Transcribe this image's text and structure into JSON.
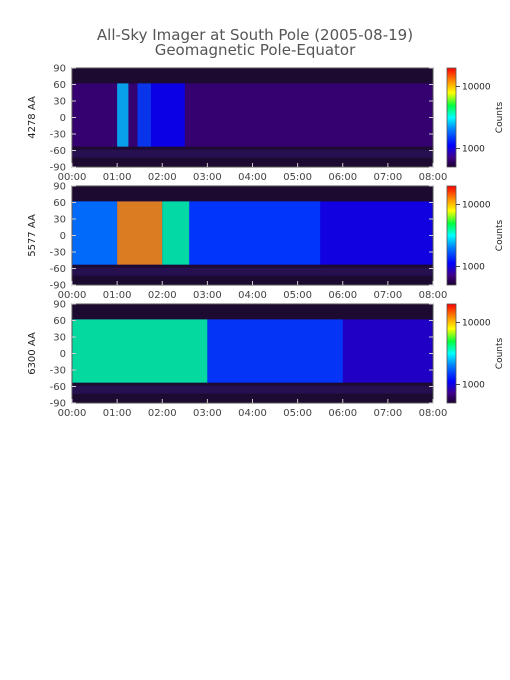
{
  "figure": {
    "title_line1": "All-Sky Imager at South Pole (2005-08-19)",
    "title_line2": "Geomagnetic Pole-Equator"
  },
  "colors": {
    "background_dark": "#1c0a30",
    "fill_violet": "#3a1c8c",
    "axis": "#555555"
  },
  "chart_data": [
    {
      "type": "heatmap",
      "ylabel": "4278 AA",
      "x_tick_labels": [
        "00:00",
        "01:00",
        "02:00",
        "03:00",
        "04:00",
        "05:00",
        "06:00",
        "07:00",
        "08:00"
      ],
      "y_tick_labels": [
        "90",
        "60",
        "30",
        "0",
        "-30",
        "-60",
        "-90"
      ],
      "xlim_hours": [
        0,
        8
      ],
      "ylim": [
        -90,
        90
      ],
      "colorbar": {
        "label": "Counts",
        "scale": "log",
        "ticks": [
          "10000",
          "1000"
        ],
        "tick_values": [
          10000,
          1000
        ],
        "range": [
          500,
          20000
        ]
      },
      "description_values": {
        "data_band_lat": [
          -53,
          62
        ],
        "background_counts": 650,
        "enhancements": [
          {
            "start_h": 1.0,
            "end_h": 1.25,
            "peak_counts": 2500
          },
          {
            "start_h": 1.45,
            "end_h": 1.75,
            "peak_counts": 1500
          },
          {
            "start_h": 1.75,
            "end_h": 2.5,
            "peak_counts": 1100
          }
        ]
      }
    },
    {
      "type": "heatmap",
      "ylabel": "5577 AA",
      "x_tick_labels": [
        "00:00",
        "01:00",
        "02:00",
        "03:00",
        "04:00",
        "05:00",
        "06:00",
        "07:00",
        "08:00"
      ],
      "y_tick_labels": [
        "90",
        "60",
        "30",
        "0",
        "-30",
        "-60",
        "-90"
      ],
      "xlim_hours": [
        0,
        8
      ],
      "ylim": [
        -90,
        90
      ],
      "colorbar": {
        "label": "Counts",
        "scale": "log",
        "ticks": [
          "10000",
          "1000"
        ],
        "tick_values": [
          10000,
          1000
        ],
        "range": [
          500,
          20000
        ]
      },
      "description_values": {
        "data_band_lat": [
          -53,
          62
        ],
        "background_counts": 1000,
        "enhancements": [
          {
            "start_h": 0.0,
            "end_h": 1.0,
            "peak_counts": 2000
          },
          {
            "start_h": 1.0,
            "end_h": 2.0,
            "peak_counts": 12000
          },
          {
            "start_h": 2.0,
            "end_h": 2.6,
            "peak_counts": 4000
          },
          {
            "start_h": 2.6,
            "end_h": 5.5,
            "peak_counts": 1500
          }
        ]
      }
    },
    {
      "type": "heatmap",
      "ylabel": "6300 AA",
      "x_tick_labels": [
        "00:00",
        "01:00",
        "02:00",
        "03:00",
        "04:00",
        "05:00",
        "06:00",
        "07:00",
        "08:00"
      ],
      "y_tick_labels": [
        "90",
        "60",
        "30",
        "0",
        "-30",
        "-60",
        "-90"
      ],
      "xlim_hours": [
        0,
        8
      ],
      "ylim": [
        -90,
        90
      ],
      "colorbar": {
        "label": "Counts",
        "scale": "log",
        "ticks": [
          "10000",
          "1000"
        ],
        "tick_values": [
          10000,
          1000
        ],
        "range": [
          500,
          20000
        ]
      },
      "description_values": {
        "data_band_lat": [
          -53,
          62
        ],
        "background_counts": 900,
        "enhancements": [
          {
            "start_h": 0.0,
            "end_h": 3.0,
            "peak_counts": 4000
          },
          {
            "start_h": 3.0,
            "end_h": 6.0,
            "peak_counts": 1500
          }
        ]
      }
    }
  ]
}
